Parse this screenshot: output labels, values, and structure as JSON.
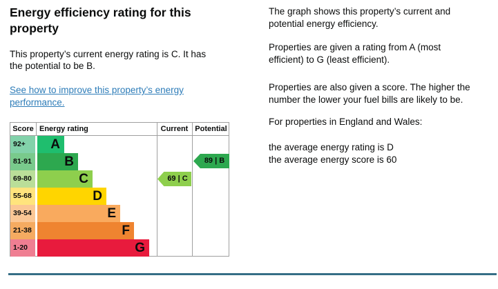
{
  "page": {
    "heading": "Energy efficiency rating for this\nproperty",
    "summary": "This property’s current energy rating is C. It has\nthe potential to be B.",
    "improve_link": "See how to improve this property’s energy\nperformance.",
    "text_color": "#0b0c0c",
    "link_color": "#2d7cb8",
    "divider_color": "#356e86"
  },
  "info_panel": {
    "p1": "The graph shows this property’s current and\npotential energy efficiency.",
    "p2": "Properties are given a rating from A (most\nefficient) to G (least efficient).",
    "p3": "Properties are also given a score. The higher the\nnumber the lower your fuel bills are likely to be.",
    "p4": "For properties in England and Wales:",
    "p5": "the average energy rating is D\nthe average energy score is 60"
  },
  "chart_data": {
    "type": "bar",
    "title": "Energy efficiency rating for this property",
    "columns": [
      "Score",
      "Energy rating",
      "Current",
      "Potential"
    ],
    "categories": [
      "A",
      "B",
      "C",
      "D",
      "E",
      "F",
      "G"
    ],
    "score_ranges": [
      "92+",
      "81-91",
      "69-80",
      "55-68",
      "39-54",
      "21-38",
      "1-20"
    ],
    "bands": [
      {
        "range": "92+",
        "letter": "A",
        "color": "#1fbe6e",
        "score_cell_color": "#82d2aa"
      },
      {
        "range": "81-91",
        "letter": "B",
        "color": "#2da84f",
        "score_cell_color": "#79ca8c"
      },
      {
        "range": "69-80",
        "letter": "C",
        "color": "#8ecf4d",
        "score_cell_color": "#bade99"
      },
      {
        "range": "55-68",
        "letter": "D",
        "color": "#ffd500",
        "score_cell_color": "#ffe47d"
      },
      {
        "range": "39-54",
        "letter": "E",
        "color": "#f9aa5e",
        "score_cell_color": "#fbc795"
      },
      {
        "range": "21-38",
        "letter": "F",
        "color": "#ef8430",
        "score_cell_color": "#f5ab61"
      },
      {
        "range": "1-20",
        "letter": "G",
        "color": "#e81b3d",
        "score_cell_color": "#ef7e92"
      }
    ],
    "current": {
      "score": 69,
      "rating": "C",
      "label": "69 | C",
      "band_index": 2,
      "color": "#8ecf4d"
    },
    "potential": {
      "score": 89,
      "rating": "B",
      "label": "89 | B",
      "band_index": 1,
      "color": "#2da84f"
    },
    "grid": "off",
    "legend": "none"
  }
}
